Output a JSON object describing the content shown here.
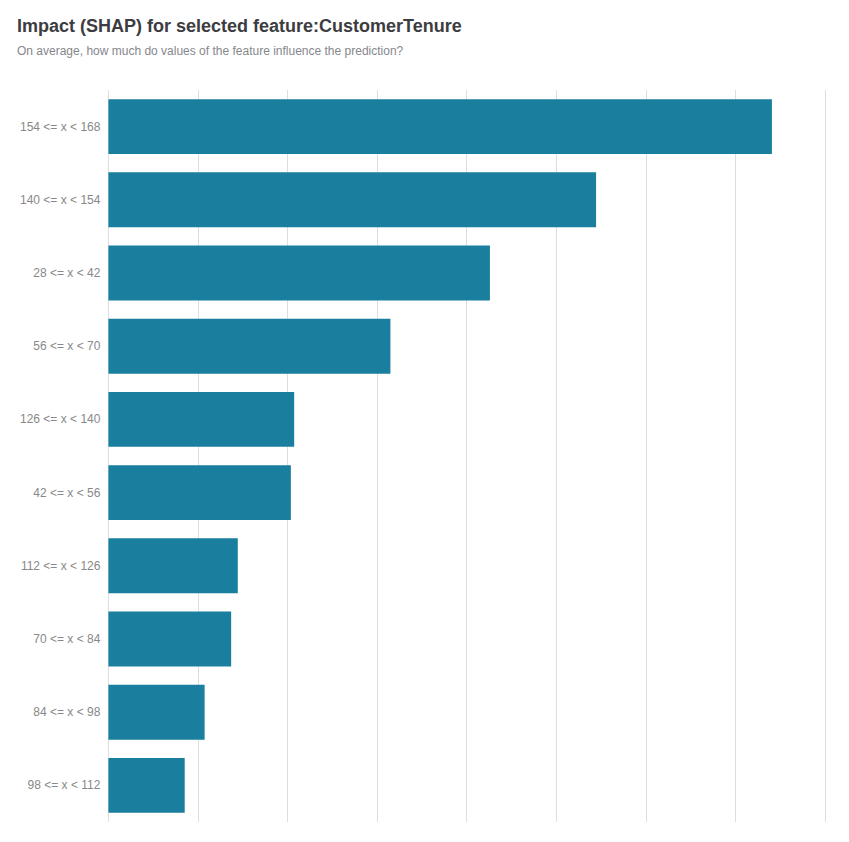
{
  "chart_data": {
    "type": "bar",
    "title": "Impact (SHAP) for selected feature:CustomerTenure",
    "subtitle": "On average, how much do values of the feature influence the prediction?",
    "orientation": "horizontal",
    "categories": [
      "154 <= x < 168",
      "140 <= x < 154",
      "28 <= x < 42",
      "56 <= x < 70",
      "126 <= x < 140",
      "42 <= x < 56",
      "112 <= x < 126",
      "70 <= x < 84",
      "84 <= x < 98",
      "98 <= x < 112"
    ],
    "values": [
      1.0,
      0.735,
      0.575,
      0.425,
      0.28,
      0.275,
      0.195,
      0.185,
      0.145,
      0.115
    ],
    "color": "#1a7f9e",
    "xlim": [
      0,
      1.08
    ],
    "xticks": [
      0,
      0.135,
      0.27,
      0.405,
      0.54,
      0.675,
      0.81,
      0.945,
      1.08
    ],
    "grid": true,
    "tick_labels": "y"
  }
}
